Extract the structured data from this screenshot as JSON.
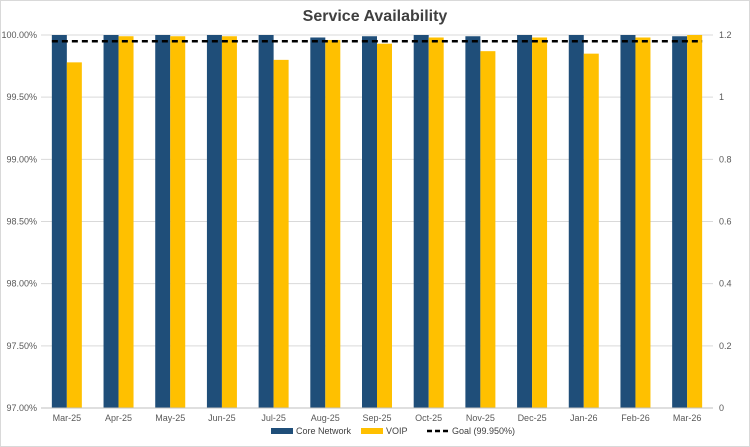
{
  "chart_data": {
    "type": "bar",
    "title": "Service Availability",
    "categories": [
      "Mar-25",
      "Apr-25",
      "May-25",
      "Jun-25",
      "Jul-25",
      "Aug-25",
      "Sep-25",
      "Oct-25",
      "Nov-25",
      "Dec-25",
      "Jan-26",
      "Feb-26",
      "Mar-26"
    ],
    "series": [
      {
        "name": "Core Network",
        "color": "#1f4e79",
        "values": [
          100.0,
          100.0,
          100.0,
          100.0,
          100.0,
          99.98,
          99.99,
          100.0,
          99.99,
          100.0,
          100.0,
          100.0,
          99.99
        ]
      },
      {
        "name": "VOIP",
        "color": "#ffc000",
        "values": [
          99.78,
          99.99,
          99.99,
          99.99,
          99.8,
          99.96,
          99.93,
          99.98,
          99.87,
          99.98,
          99.85,
          99.98,
          100.0
        ]
      }
    ],
    "goal": {
      "name": "Goal (99.950%)",
      "value": 99.95,
      "color": "#000000",
      "style": "dashed"
    },
    "ylim": [
      97.0,
      100.0
    ],
    "yticks": [
      "97.00%",
      "97.50%",
      "98.00%",
      "98.50%",
      "99.00%",
      "99.50%",
      "100.00%"
    ],
    "yticks_values": [
      97.0,
      97.5,
      98.0,
      98.5,
      99.0,
      99.5,
      100.0
    ],
    "y2lim": [
      0,
      1.2
    ],
    "y2ticks": [
      "0",
      "0.2",
      "0.4",
      "0.6",
      "0.8",
      "1",
      "1.2"
    ],
    "y2ticks_values": [
      0,
      0.2,
      0.4,
      0.6,
      0.8,
      1.0,
      1.2
    ],
    "grid": true,
    "legend_position": "bottom"
  }
}
